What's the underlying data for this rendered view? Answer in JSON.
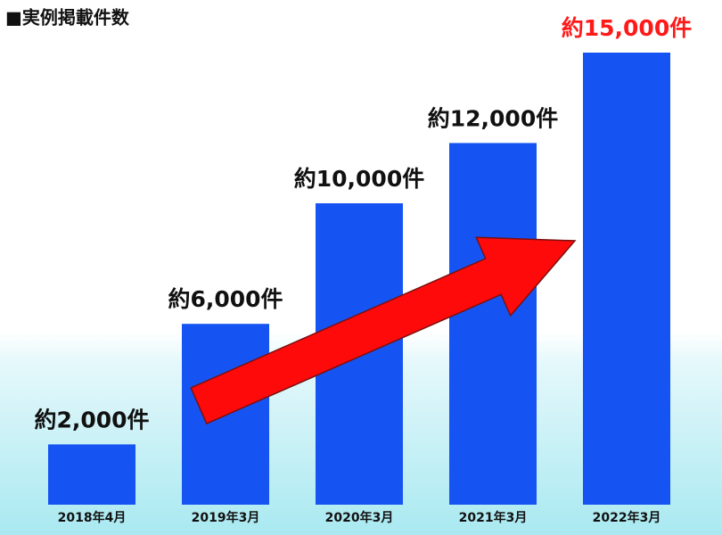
{
  "chart_data": {
    "type": "bar",
    "title": "■実例掲載件数",
    "categories": [
      "2018年4月",
      "2019年3月",
      "2020年3月",
      "2021年3月",
      "2022年3月"
    ],
    "values": [
      2000,
      6000,
      10000,
      12000,
      15000
    ],
    "value_labels": [
      "約2,000件",
      "約6,000件",
      "約10,000件",
      "約12,000件",
      "約15,000件"
    ],
    "value_label_colors": [
      "#111111",
      "#111111",
      "#111111",
      "#111111",
      "#ff1a1a"
    ],
    "color": "#1554f2"
  }
}
